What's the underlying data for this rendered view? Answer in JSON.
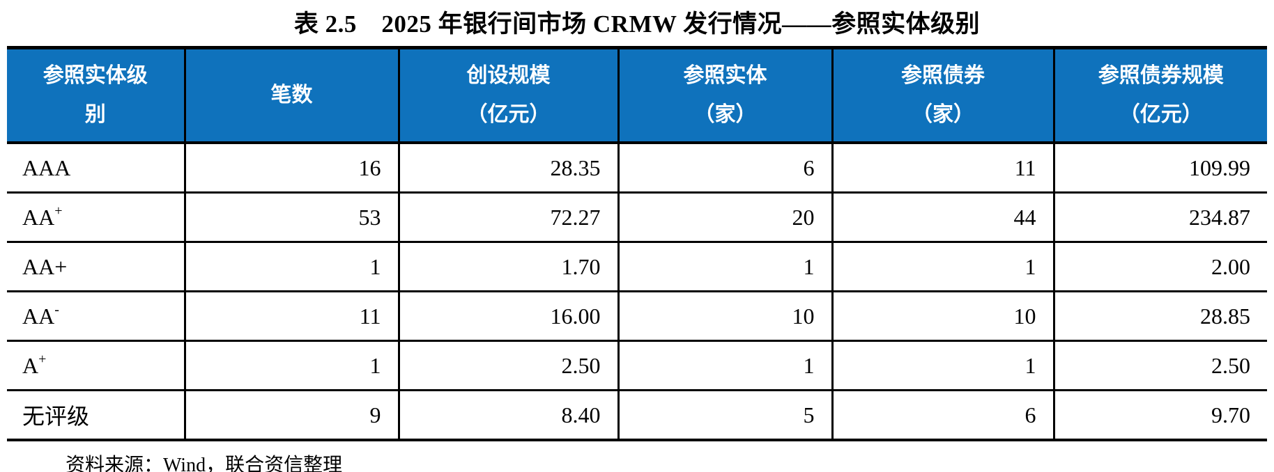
{
  "title": "表 2.5　2025 年银行间市场 CRMW 发行情况——参照实体级别",
  "colors": {
    "header_bg": "#0F72BC",
    "header_text": "#FFFFFF",
    "border": "#000000"
  },
  "table": {
    "columns": [
      {
        "id": "rating",
        "label": "参照实体级\n别"
      },
      {
        "id": "deal_count",
        "label": "笔数"
      },
      {
        "id": "creation_scale",
        "label": "创设规模\n（亿元）"
      },
      {
        "id": "ref_entities",
        "label": "参照实体\n（家）"
      },
      {
        "id": "ref_bonds",
        "label": "参照债券\n（家）"
      },
      {
        "id": "ref_bond_scale",
        "label": "参照债券规模\n（亿元）"
      }
    ],
    "rows": [
      {
        "rating_base": "AAA",
        "rating_sup": "",
        "values": [
          "16",
          "28.35",
          "6",
          "11",
          "109.99"
        ]
      },
      {
        "rating_base": "AA",
        "rating_sup": "+",
        "values": [
          "53",
          "72.27",
          "20",
          "44",
          "234.87"
        ]
      },
      {
        "rating_base": "AA+",
        "rating_sup": "",
        "values": [
          "1",
          "1.70",
          "1",
          "1",
          "2.00"
        ]
      },
      {
        "rating_base": "AA",
        "rating_sup": "-",
        "values": [
          "11",
          "16.00",
          "10",
          "10",
          "28.85"
        ]
      },
      {
        "rating_base": "A",
        "rating_sup": "+",
        "values": [
          "1",
          "2.50",
          "1",
          "1",
          "2.50"
        ]
      },
      {
        "rating_base": "无评级",
        "rating_sup": "",
        "values": [
          "9",
          "8.40",
          "5",
          "6",
          "9.70"
        ]
      }
    ]
  },
  "source_note": "资料来源：Wind，联合资信整理"
}
